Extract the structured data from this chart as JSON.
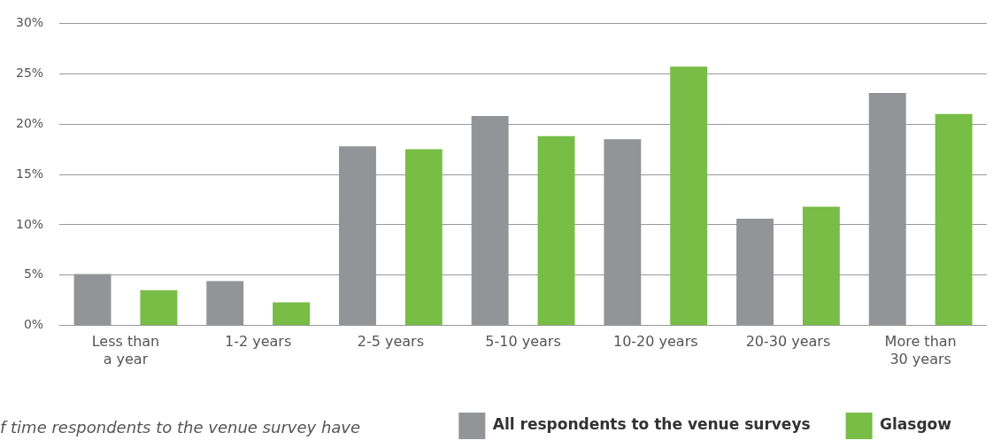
{
  "chart_data": {
    "type": "bar",
    "categories": [
      "Less than\na year",
      "1-2 years",
      "2-5 years",
      "5-10 years",
      "10-20 years",
      "20-30 years",
      "More than\n30 years"
    ],
    "series": [
      {
        "name": "All respondents to the venue surveys",
        "color": "#929497",
        "values": [
          5.1,
          4.4,
          17.8,
          20.8,
          18.5,
          10.6,
          23.1
        ]
      },
      {
        "name": "Glasgow",
        "color": "#77bd46",
        "values": [
          3.5,
          2.3,
          17.5,
          18.8,
          25.7,
          11.8,
          21.0
        ]
      }
    ],
    "ylim": [
      0,
      30
    ],
    "yticks": [
      {
        "value": 0,
        "label": "0%"
      },
      {
        "value": 5,
        "label": "5%"
      },
      {
        "value": 10,
        "label": "10%"
      },
      {
        "value": 15,
        "label": "15%"
      },
      {
        "value": 20,
        "label": "20%"
      },
      {
        "value": 25,
        "label": "25%"
      },
      {
        "value": 30,
        "label": "30%"
      }
    ],
    "grid": "y",
    "legend": "bottom right",
    "annotations": [
      "f time respondents to the venue survey have"
    ]
  }
}
